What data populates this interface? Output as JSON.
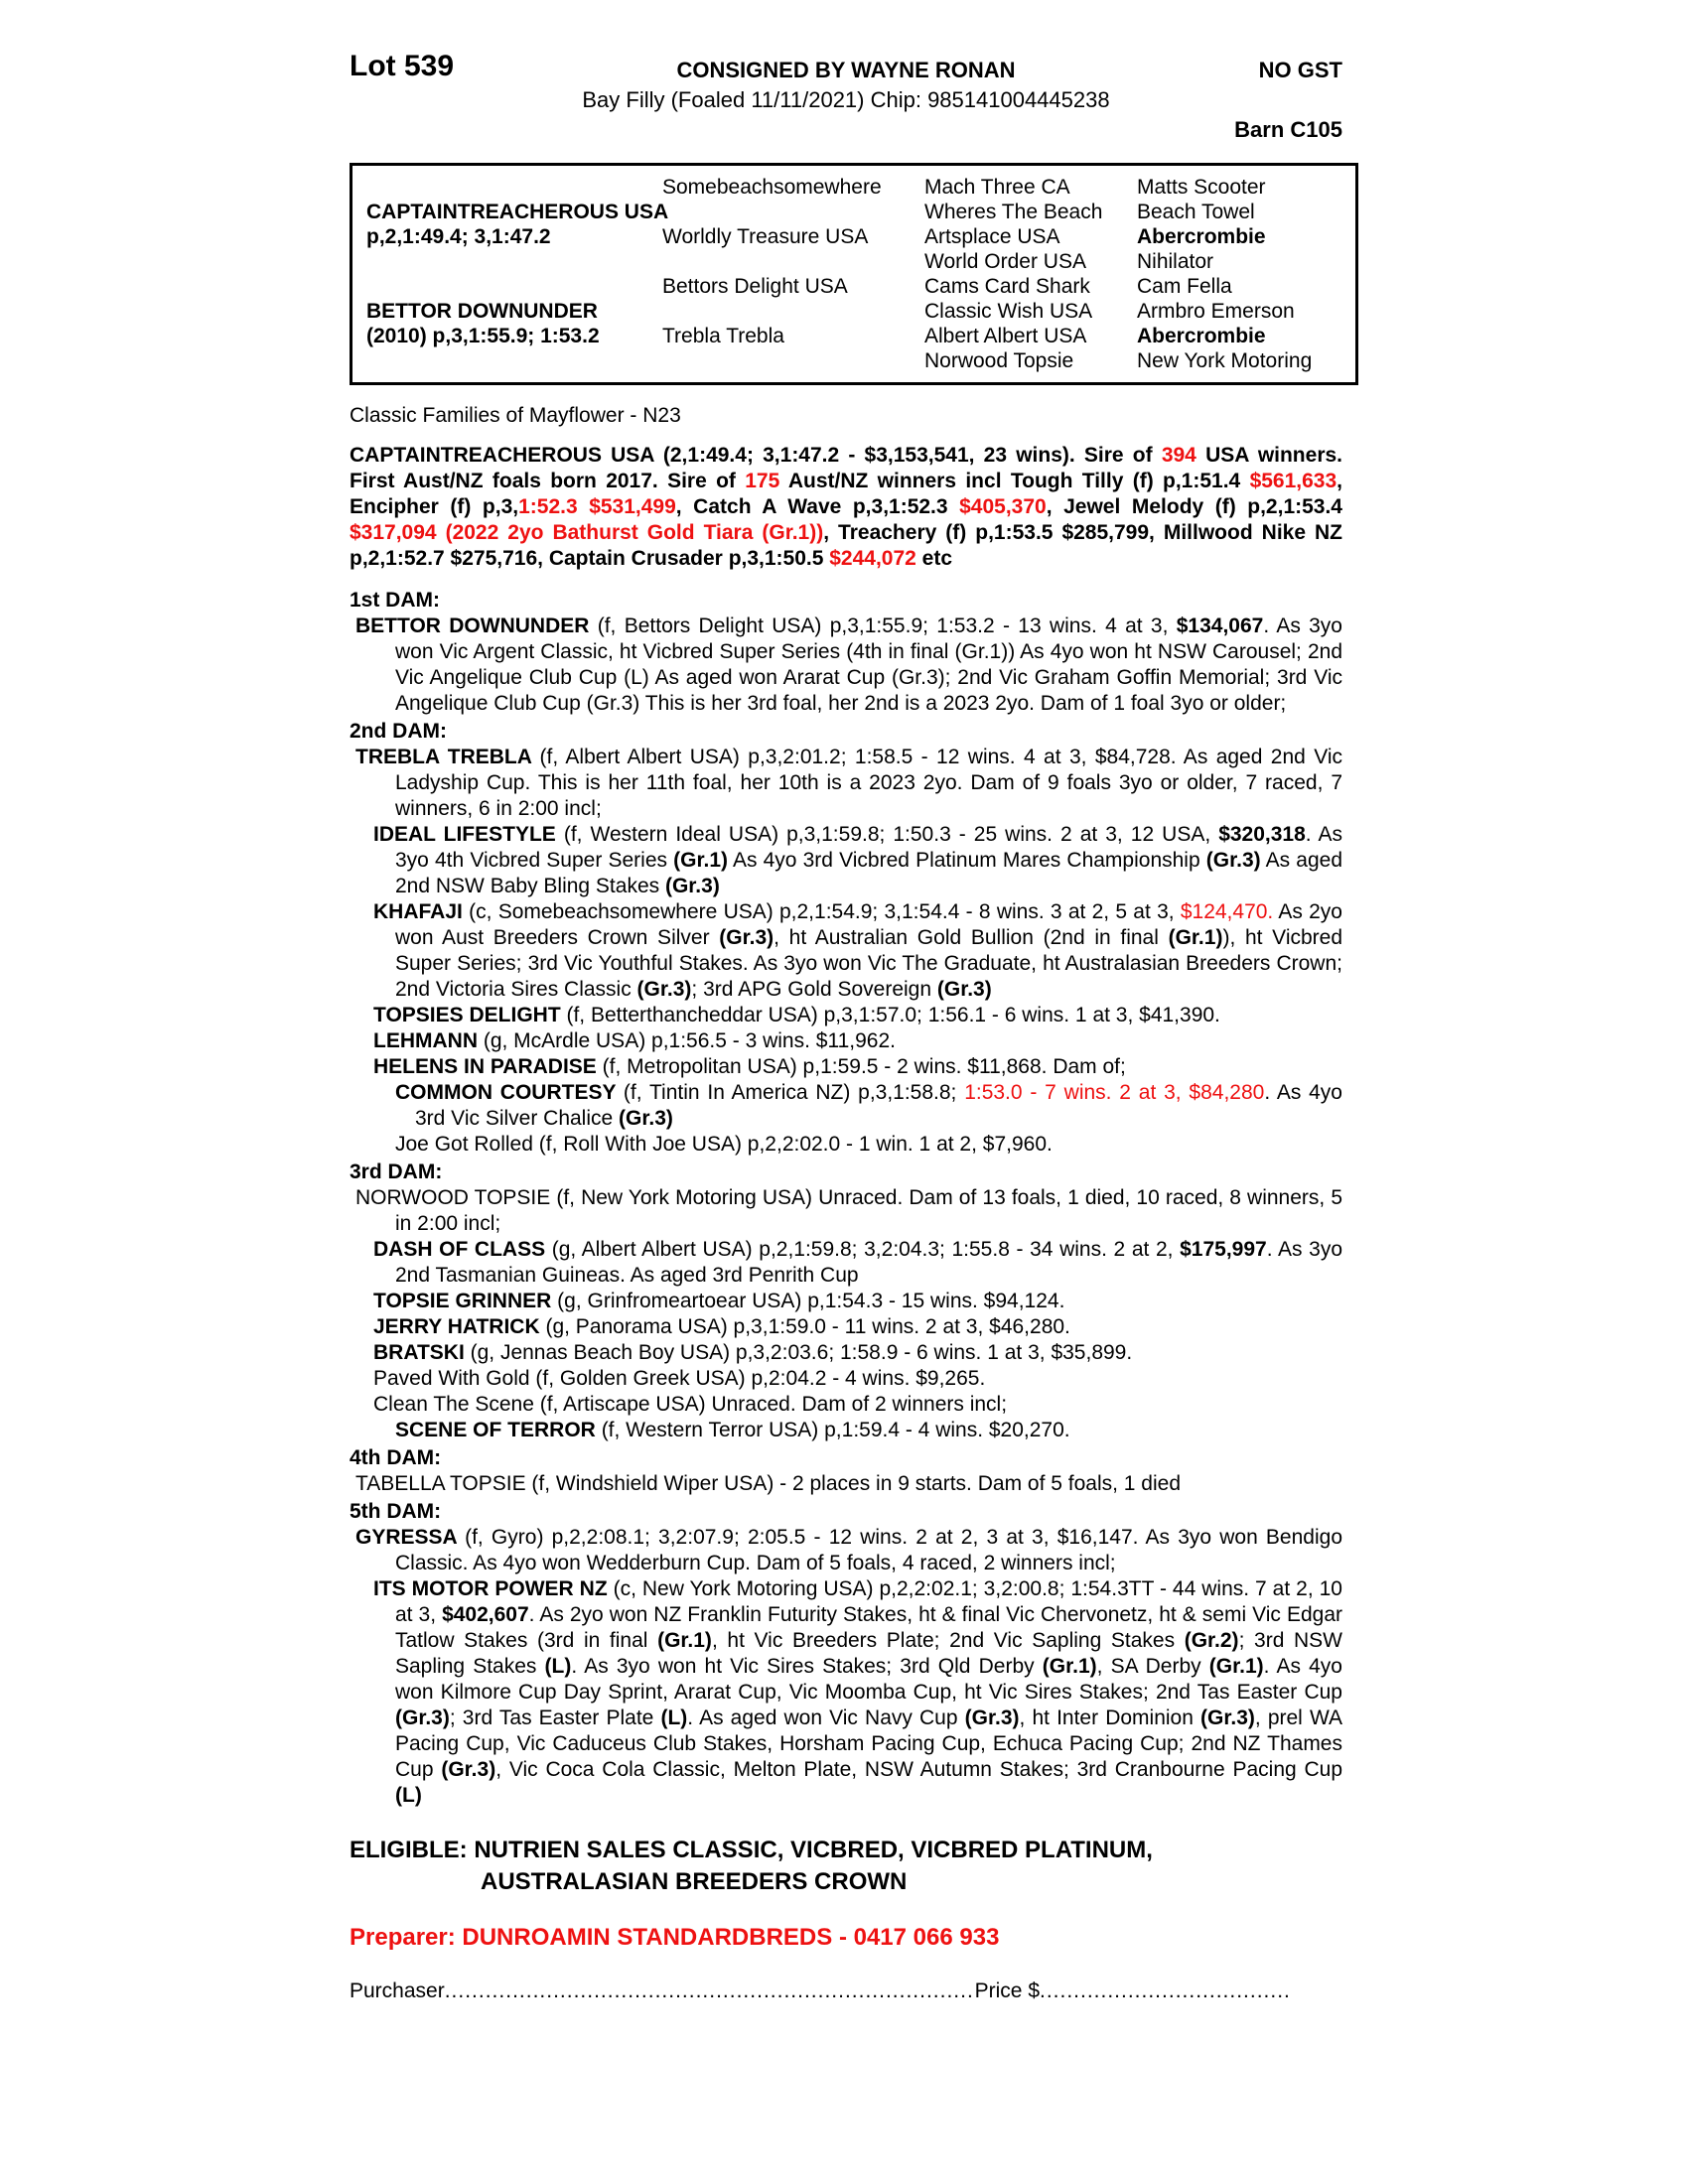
{
  "header": {
    "lot": "Lot 539",
    "consigned": "CONSIGNED BY WAYNE RONAN",
    "no_gst": "NO GST",
    "foaled_line": "Bay Filly (Foaled 11/11/2021) Chip: 985141004445238",
    "barn": "Barn C105"
  },
  "pedigree": {
    "rows": [
      [
        {
          "t": "",
          "b": false
        },
        {
          "t": "Somebeachsomewhere",
          "b": false
        },
        {
          "t": "Mach Three CA",
          "b": false
        },
        {
          "t": "Matts Scooter",
          "b": false
        }
      ],
      [
        {
          "t": "CAPTAINTREACHEROUS USA",
          "b": true
        },
        {
          "t": "",
          "b": false
        },
        {
          "t": "Wheres The Beach",
          "b": false
        },
        {
          "t": "Beach Towel",
          "b": false
        }
      ],
      [
        {
          "t": "p,2,1:49.4; 3,1:47.2",
          "b": true
        },
        {
          "t": "Worldly Treasure USA",
          "b": false
        },
        {
          "t": "Artsplace USA",
          "b": false
        },
        {
          "t": "Abercrombie",
          "b": true
        }
      ],
      [
        {
          "t": "",
          "b": false
        },
        {
          "t": "",
          "b": false
        },
        {
          "t": "World Order USA",
          "b": false
        },
        {
          "t": "Nihilator",
          "b": false
        }
      ],
      [
        {
          "t": "",
          "b": false
        },
        {
          "t": "Bettors Delight USA",
          "b": false
        },
        {
          "t": "Cams Card Shark",
          "b": false
        },
        {
          "t": "Cam Fella",
          "b": false
        }
      ],
      [
        {
          "t": "BETTOR DOWNUNDER",
          "b": true
        },
        {
          "t": "",
          "b": false
        },
        {
          "t": "Classic Wish USA",
          "b": false
        },
        {
          "t": "Armbro Emerson",
          "b": false
        }
      ],
      [
        {
          "t": "(2010) p,3,1:55.9; 1:53.2",
          "b": true
        },
        {
          "t": "Trebla Trebla",
          "b": false
        },
        {
          "t": "Albert Albert USA",
          "b": false
        },
        {
          "t": "Abercrombie",
          "b": true
        }
      ],
      [
        {
          "t": "",
          "b": false
        },
        {
          "t": "",
          "b": false
        },
        {
          "t": "Norwood Topsie",
          "b": false
        },
        {
          "t": "New York Motoring",
          "b": false
        }
      ]
    ]
  },
  "body": {
    "paragraphs": [
      {
        "name": "family-line",
        "cls": "plain",
        "segs": [
          {
            "t": "Classic Families of Mayflower - N23"
          }
        ]
      },
      {
        "name": "sire-summary",
        "cls": "sire",
        "segs": [
          {
            "t": "CAPTAINTREACHEROUS USA (2,1:49.4; 3,1:47.2 - $3,153,541, 23 wins). Sire of "
          },
          {
            "t": "394",
            "r": true
          },
          {
            "t": " USA winners. First Aust/NZ foals born 2017. Sire of "
          },
          {
            "t": "175",
            "r": true
          },
          {
            "t": " Aust/NZ winners incl Tough Tilly (f) p,1:51.4 "
          },
          {
            "t": "$561,633",
            "r": true
          },
          {
            "t": ", Encipher (f) p,3,"
          },
          {
            "t": "1:52.3 $531,499",
            "r": true
          },
          {
            "t": ", Catch A Wave p,3,1:52.3 "
          },
          {
            "t": "$405,370",
            "r": true
          },
          {
            "t": ", Jewel Melody (f) p,2,1:53.4 "
          },
          {
            "t": "$317,094 (2022 2yo Bathurst Gold Tiara (Gr.1))",
            "r": true
          },
          {
            "t": ", Treachery (f) p,1:53.5 $285,799, Millwood Nike NZ p,2,1:52.7 $275,716, Captain Crusader p,3,1:50.5 "
          },
          {
            "t": "$244,072",
            "r": true
          },
          {
            "t": " etc"
          }
        ]
      },
      {
        "name": "dam1-heading",
        "cls": "damhead",
        "segs": [
          {
            "t": "1st DAM:"
          }
        ]
      },
      {
        "name": "dam1-entry",
        "cls": "l1",
        "segs": [
          {
            "t": "BETTOR DOWNUNDER ",
            "b": true
          },
          {
            "t": "(f, Bettors Delight USA) p,3,1:55.9; 1:53.2 - 13 wins. 4 at 3, "
          },
          {
            "t": "$134,067",
            "b": true
          },
          {
            "t": ". As 3yo won Vic Argent Classic, ht Vicbred Super Series (4th in final (Gr.1)) As 4yo won ht NSW Carousel; 2nd Vic Angelique Club Cup (L) As aged won Ararat Cup (Gr.3); 2nd Vic Graham Goffin Memorial; 3rd Vic Angelique Club Cup (Gr.3) This is her 3rd foal, her 2nd is a 2023 2yo. Dam of 1 foal 3yo or older;"
          }
        ]
      },
      {
        "name": "dam2-heading",
        "cls": "damhead",
        "segs": [
          {
            "t": "2nd DAM:"
          }
        ]
      },
      {
        "name": "dam2-entry",
        "cls": "l1",
        "segs": [
          {
            "t": "TREBLA TREBLA ",
            "b": true
          },
          {
            "t": "(f, Albert Albert USA) p,3,2:01.2; 1:58.5 - 12 wins. 4 at 3, $84,728. As aged 2nd Vic Ladyship Cup. This is her 11th foal, her 10th is a 2023 2yo. Dam of 9 foals 3yo or older, 7 raced, 7 winners, 6 in 2:00 incl;"
          }
        ]
      },
      {
        "name": "horse-ideal-lifestyle",
        "cls": "l2",
        "segs": [
          {
            "t": "IDEAL LIFESTYLE ",
            "b": true
          },
          {
            "t": "(f, Western Ideal USA) p,3,1:59.8; 1:50.3 - 25 wins. 2 at 3, 12 USA, "
          },
          {
            "t": "$320,318",
            "b": true
          },
          {
            "t": ". As 3yo 4th Vicbred Super Series "
          },
          {
            "t": "(Gr.1)",
            "b": true
          },
          {
            "t": " As 4yo 3rd Vicbred Platinum Mares Championship "
          },
          {
            "t": "(Gr.3)",
            "b": true
          },
          {
            "t": " As aged 2nd NSW Baby Bling Stakes "
          },
          {
            "t": "(Gr.3)",
            "b": true
          }
        ]
      },
      {
        "name": "horse-khafaji",
        "cls": "l2",
        "segs": [
          {
            "t": "KHAFAJI ",
            "b": true
          },
          {
            "t": "(c, Somebeachsomewhere USA) p,2,1:54.9; 3,1:54.4 - 8 wins. 3 at 2, 5 at 3, "
          },
          {
            "t": "$124,470.",
            "r": true
          },
          {
            "t": " As 2yo won Aust Breeders Crown Silver "
          },
          {
            "t": "(Gr.3)",
            "b": true
          },
          {
            "t": ", ht Australian Gold Bullion (2nd in final "
          },
          {
            "t": "(Gr.1)",
            "b": true
          },
          {
            "t": "), ht Vicbred Super Series; 3rd Vic Youthful Stakes. As 3yo won Vic The Graduate, ht Australasian Breeders Crown; 2nd Victoria Sires Classic "
          },
          {
            "t": "(Gr.3)",
            "b": true
          },
          {
            "t": "; 3rd APG Gold Sovereign "
          },
          {
            "t": "(Gr.3)",
            "b": true
          }
        ]
      },
      {
        "name": "horse-topsies-delight",
        "cls": "l2",
        "segs": [
          {
            "t": "TOPSIES DELIGHT ",
            "b": true
          },
          {
            "t": "(f, Betterthancheddar USA) p,3,1:57.0; 1:56.1 - 6 wins. 1 at 3, $41,390."
          }
        ]
      },
      {
        "name": "horse-lehmann",
        "cls": "l2",
        "segs": [
          {
            "t": "LEHMANN ",
            "b": true
          },
          {
            "t": "(g, McArdle USA) p,1:56.5 - 3 wins. $11,962."
          }
        ]
      },
      {
        "name": "horse-helens-in-paradise",
        "cls": "l2",
        "segs": [
          {
            "t": "HELENS IN PARADISE ",
            "b": true
          },
          {
            "t": "(f, Metropolitan USA) p,1:59.5 - 2 wins. $11,868. Dam of;"
          }
        ]
      },
      {
        "name": "horse-common-courtesy",
        "cls": "l3",
        "segs": [
          {
            "t": "COMMON COURTESY ",
            "b": true
          },
          {
            "t": "(f, Tintin In America NZ) p,3,1:58.8; "
          },
          {
            "t": "1:53.0 - 7 wins. 2 at 3, $84,280",
            "r": true
          },
          {
            "t": ". As 4yo 3rd Vic Silver Chalice "
          },
          {
            "t": "(Gr.3)",
            "b": true
          }
        ]
      },
      {
        "name": "horse-joe-got-rolled",
        "cls": "l3",
        "segs": [
          {
            "t": "Joe Got Rolled (f, Roll With Joe USA) p,2,2:02.0 - 1 win. 1 at 2, $7,960."
          }
        ]
      },
      {
        "name": "dam3-heading",
        "cls": "damhead",
        "segs": [
          {
            "t": "3rd DAM:"
          }
        ]
      },
      {
        "name": "dam3-entry",
        "cls": "l1",
        "segs": [
          {
            "t": "NORWOOD TOPSIE (f, New York Motoring USA) Unraced. Dam of 13 foals, 1 died, 10 raced, 8 winners, 5 in 2:00 incl;"
          }
        ]
      },
      {
        "name": "horse-dash-of-class",
        "cls": "l2",
        "segs": [
          {
            "t": "DASH OF CLASS ",
            "b": true
          },
          {
            "t": "(g, Albert Albert USA) p,2,1:59.8; 3,2:04.3; 1:55.8 - 34 wins. 2 at 2, "
          },
          {
            "t": "$175,997",
            "b": true
          },
          {
            "t": ". As 3yo 2nd Tasmanian Guineas. As aged 3rd Penrith Cup"
          }
        ]
      },
      {
        "name": "horse-topsie-grinner",
        "cls": "l2",
        "segs": [
          {
            "t": "TOPSIE GRINNER ",
            "b": true
          },
          {
            "t": "(g, Grinfromeartoear USA) p,1:54.3 - 15 wins. $94,124."
          }
        ]
      },
      {
        "name": "horse-jerry-hatrick",
        "cls": "l2",
        "segs": [
          {
            "t": "JERRY HATRICK ",
            "b": true
          },
          {
            "t": "(g, Panorama USA) p,3,1:59.0 - 11 wins. 2 at 3, $46,280."
          }
        ]
      },
      {
        "name": "horse-bratski",
        "cls": "l2",
        "segs": [
          {
            "t": "BRATSKI ",
            "b": true
          },
          {
            "t": "(g, Jennas Beach Boy USA) p,3,2:03.6; 1:58.9 - 6 wins. 1 at 3, $35,899."
          }
        ]
      },
      {
        "name": "horse-paved-with-gold",
        "cls": "l2",
        "segs": [
          {
            "t": "Paved With Gold (f, Golden Greek USA) p,2:04.2 - 4 wins. $9,265."
          }
        ]
      },
      {
        "name": "horse-clean-the-scene",
        "cls": "l2",
        "segs": [
          {
            "t": "Clean The Scene (f, Artiscape USA) Unraced. Dam of 2 winners incl;"
          }
        ]
      },
      {
        "name": "horse-scene-of-terror",
        "cls": "l3",
        "segs": [
          {
            "t": "SCENE OF TERROR ",
            "b": true
          },
          {
            "t": "(f, Western Terror USA) p,1:59.4 - 4 wins. $20,270."
          }
        ]
      },
      {
        "name": "dam4-heading",
        "cls": "damhead",
        "segs": [
          {
            "t": "4th DAM:"
          }
        ]
      },
      {
        "name": "dam4-entry",
        "cls": "l1",
        "segs": [
          {
            "t": "TABELLA TOPSIE (f, Windshield Wiper USA) - 2 places in 9 starts. Dam of 5 foals, 1 died"
          }
        ]
      },
      {
        "name": "dam5-heading",
        "cls": "damhead",
        "segs": [
          {
            "t": "5th DAM:"
          }
        ]
      },
      {
        "name": "dam5-entry",
        "cls": "l1",
        "segs": [
          {
            "t": "GYRESSA ",
            "b": true
          },
          {
            "t": "(f, Gyro) p,2,2:08.1; 3,2:07.9; 2:05.5 - 12 wins. 2 at 2, 3 at 3, $16,147. As 3yo won Bendigo Classic. As 4yo won Wedderburn Cup. Dam of 5 foals, 4 raced, 2 winners incl;"
          }
        ]
      },
      {
        "name": "horse-its-motor-power",
        "cls": "l2",
        "segs": [
          {
            "t": "ITS MOTOR POWER NZ ",
            "b": true
          },
          {
            "t": "(c, New York Motoring USA) p,2,2:02.1; 3,2:00.8; 1:54.3TT - 44 wins. 7 at 2, 10 at 3, "
          },
          {
            "t": "$402,607",
            "b": true
          },
          {
            "t": ". As 2yo won NZ Franklin Futurity Stakes, ht & final Vic Chervonetz, ht & semi Vic Edgar Tatlow Stakes (3rd in final "
          },
          {
            "t": "(Gr.1)",
            "b": true
          },
          {
            "t": ", ht Vic Breeders Plate; 2nd Vic Sapling Stakes "
          },
          {
            "t": "(Gr.2)",
            "b": true
          },
          {
            "t": "; 3rd NSW Sapling Stakes "
          },
          {
            "t": "(L)",
            "b": true
          },
          {
            "t": ". As 3yo won ht Vic Sires Stakes; 3rd Qld Derby "
          },
          {
            "t": "(Gr.1)",
            "b": true
          },
          {
            "t": ", SA Derby "
          },
          {
            "t": "(Gr.1)",
            "b": true
          },
          {
            "t": ". As 4yo won Kilmore Cup Day Sprint, Ararat Cup, Vic Moomba Cup, ht Vic Sires Stakes; 2nd Tas Easter Cup "
          },
          {
            "t": "(Gr.3)",
            "b": true
          },
          {
            "t": "; 3rd Tas Easter Plate "
          },
          {
            "t": "(L)",
            "b": true
          },
          {
            "t": ". As aged won Vic Navy Cup "
          },
          {
            "t": "(Gr.3)",
            "b": true
          },
          {
            "t": ", ht Inter Dominion "
          },
          {
            "t": "(Gr.3)",
            "b": true
          },
          {
            "t": ", prel WA Pacing Cup, Vic Caduceus Club Stakes, Horsham Pacing Cup, Echuca Pacing Cup; 2nd NZ Thames Cup "
          },
          {
            "t": "(Gr.3)",
            "b": true
          },
          {
            "t": ", Vic Coca Cola Classic, Melton Plate, NSW Autumn Stakes; 3rd Cranbourne Pacing Cup "
          },
          {
            "t": "(L)",
            "b": true
          }
        ]
      }
    ]
  },
  "footer": {
    "eligible_line1": "ELIGIBLE: NUTRIEN SALES CLASSIC, VICBRED, VICBRED PLATINUM,",
    "eligible_line2": "AUSTRALASIAN BREEDERS CROWN",
    "preparer": "Preparer: DUNROAMIN STANDARDBREDS - 0417 066 933",
    "purchaser_label": "Purchaser",
    "purchaser_dots": "........................................................................................................................................................",
    "price_label": "Price $",
    "price_dots": "........................................................................"
  },
  "colors": {
    "highlight_red": "#ee1111",
    "text_black": "#000000",
    "page_background": "#ffffff"
  }
}
